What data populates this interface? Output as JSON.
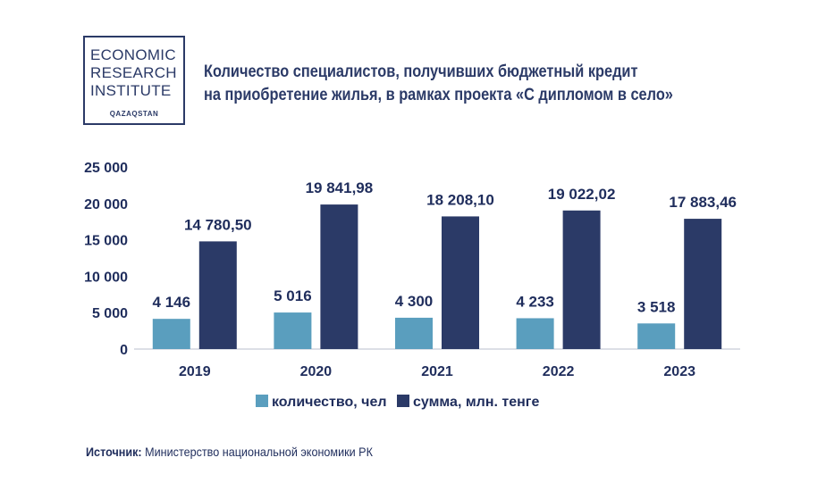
{
  "logo": {
    "lines": [
      "ECONOMIC",
      "RESEARCH",
      "INSTITUTE"
    ],
    "sub": "QAZAQSTAN"
  },
  "title": {
    "line1": "Количество специалистов, получивших бюджетный кредит",
    "line2": "на приобретение жилья, в рамках проекта «С дипломом в село»"
  },
  "source": {
    "label": "Источник:",
    "text": " Министерство национальной экономики РК"
  },
  "colors": {
    "series1": "#5a9ebe",
    "series2": "#2b3a67",
    "text": "#1f2d5c"
  },
  "chart_data": {
    "type": "bar",
    "categories": [
      "2019",
      "2020",
      "2021",
      "2022",
      "2023"
    ],
    "ylim": [
      0,
      25000
    ],
    "yticks": [
      "0",
      "5 000",
      "10 000",
      "15 000",
      "20 000",
      "25 000"
    ],
    "legend_position": "bottom",
    "grid": false,
    "series": [
      {
        "name": "количество, чел",
        "values": [
          4146,
          5016,
          4300,
          4233,
          3518
        ],
        "labels": [
          "4 146",
          "5 016",
          "4 300",
          "4 233",
          "3 518"
        ]
      },
      {
        "name": "сумма, млн. тенге",
        "values": [
          14780.5,
          19841.98,
          18208.1,
          19022.02,
          17883.46
        ],
        "labels": [
          "14 780,50",
          "19 841,98",
          "18 208,10",
          "19 022,02",
          "17 883,46"
        ]
      }
    ]
  }
}
